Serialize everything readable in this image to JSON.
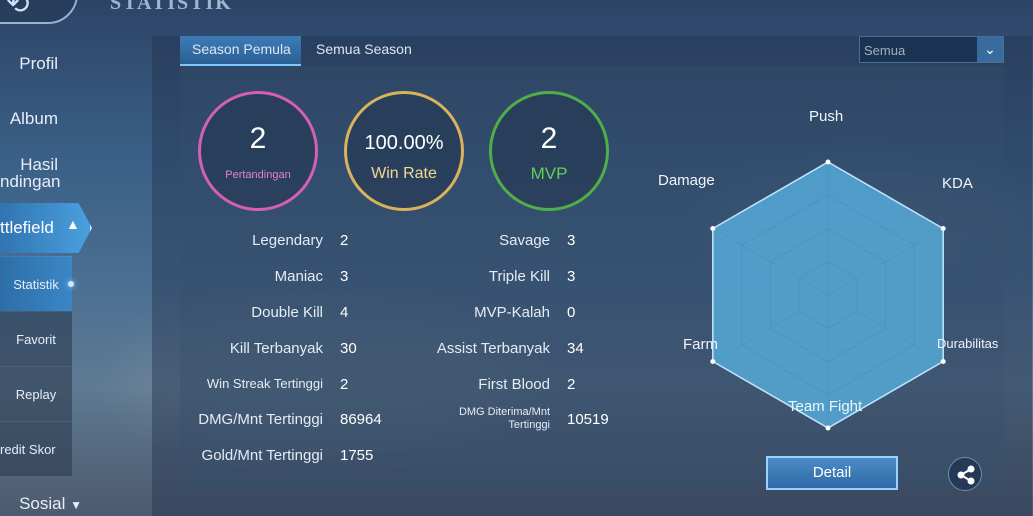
{
  "page": {
    "title": "STATISTIK"
  },
  "sidebar": {
    "items": [
      {
        "label": "Profil"
      },
      {
        "label": "Album"
      },
      {
        "label": "Hasil\nndingan"
      },
      {
        "label": "ttlefield"
      }
    ],
    "subitems": [
      {
        "label": "Statistik"
      },
      {
        "label": "Favorit"
      },
      {
        "label": "Replay"
      },
      {
        "label": "redit Skor"
      }
    ],
    "social": {
      "label": "Sosial"
    }
  },
  "tabs": [
    {
      "label": "Season Pemula"
    },
    {
      "label": "Semua Season"
    }
  ],
  "filter": {
    "value": "Semua"
  },
  "summary": {
    "matches": {
      "value": "2",
      "label": "Pertandingan"
    },
    "winrate": {
      "value": "100.00%",
      "label": "Win Rate"
    },
    "mvp": {
      "value": "2",
      "label": "MVP"
    }
  },
  "stats_left": [
    {
      "label": "Legendary",
      "value": "2"
    },
    {
      "label": "Maniac",
      "value": "3"
    },
    {
      "label": "Double Kill",
      "value": "4"
    },
    {
      "label": "Kill Terbanyak",
      "value": "30"
    },
    {
      "label": "Win Streak Tertinggi",
      "value": "2"
    },
    {
      "label": "DMG/Mnt Tertinggi",
      "value": "86964"
    },
    {
      "label": "Gold/Mnt Tertinggi",
      "value": "1755"
    }
  ],
  "stats_right": [
    {
      "label": "Savage",
      "value": "3"
    },
    {
      "label": "Triple Kill",
      "value": "3"
    },
    {
      "label": "MVP-Kalah",
      "value": "0"
    },
    {
      "label": "Assist Terbanyak",
      "value": "34"
    },
    {
      "label": "First Blood",
      "value": "2"
    },
    {
      "label": "DMG Diterima/Mnt\nTertinggi",
      "value": "10519"
    }
  ],
  "radar": {
    "axes": [
      "Push",
      "KDA",
      "Durabilitas",
      "Team Fight",
      "Farm",
      "Damage"
    ],
    "values": [
      1,
      1,
      1,
      1,
      1,
      1
    ],
    "fill_color": "#5ab6e6"
  },
  "actions": {
    "detail_label": "Detail"
  },
  "colors": {
    "matches_ring": "#d65fb4",
    "winrate_ring": "#d9b25c",
    "mvp_ring": "#4fae48"
  }
}
